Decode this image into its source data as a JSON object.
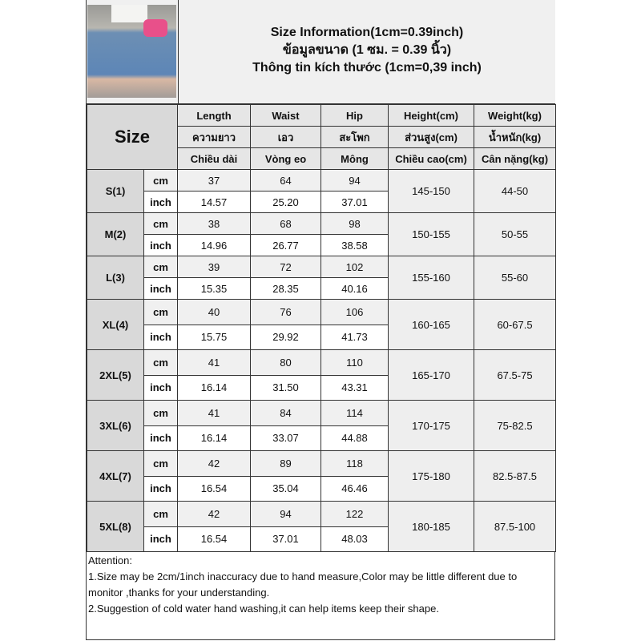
{
  "title": {
    "line1": "Size Information(1cm=0.39inch)",
    "line2": "ข้อมูลขนาด (1 ซม. = 0.39 นิ้ว)",
    "line3": "Thông tin kích thước (1cm=0,39 inch)"
  },
  "header": {
    "size": "Size",
    "en": [
      "Length",
      "Waist",
      "Hip",
      "Height(cm)",
      "Weight(kg)"
    ],
    "th": [
      "ความยาว",
      "เอว",
      "สะโพก",
      "ส่วนสูง(cm)",
      "น้ำหนัก(kg)"
    ],
    "vi": [
      "Chiều dài",
      "Vòng eo",
      "Mông",
      "Chiều cao(cm)",
      "Cân nặng(kg)"
    ]
  },
  "units": {
    "cm": "cm",
    "inch": "inch"
  },
  "rows": [
    {
      "size": "S(1)",
      "cm": [
        "37",
        "64",
        "94"
      ],
      "inch": [
        "14.57",
        "25.20",
        "37.01"
      ],
      "height": "145-150",
      "weight": "44-50"
    },
    {
      "size": "M(2)",
      "cm": [
        "38",
        "68",
        "98"
      ],
      "inch": [
        "14.96",
        "26.77",
        "38.58"
      ],
      "height": "150-155",
      "weight": "50-55"
    },
    {
      "size": "L(3)",
      "cm": [
        "39",
        "72",
        "102"
      ],
      "inch": [
        "15.35",
        "28.35",
        "40.16"
      ],
      "height": "155-160",
      "weight": "55-60"
    },
    {
      "size": "XL(4)",
      "cm": [
        "40",
        "76",
        "106"
      ],
      "inch": [
        "15.75",
        "29.92",
        "41.73"
      ],
      "height": "160-165",
      "weight": "60-67.5"
    },
    {
      "size": "2XL(5)",
      "cm": [
        "41",
        "80",
        "110"
      ],
      "inch": [
        "16.14",
        "31.50",
        "43.31"
      ],
      "height": "165-170",
      "weight": "67.5-75"
    },
    {
      "size": "3XL(6)",
      "cm": [
        "41",
        "84",
        "114"
      ],
      "inch": [
        "16.14",
        "33.07",
        "44.88"
      ],
      "height": "170-175",
      "weight": "75-82.5"
    },
    {
      "size": "4XL(7)",
      "cm": [
        "42",
        "89",
        "118"
      ],
      "inch": [
        "16.54",
        "35.04",
        "46.46"
      ],
      "height": "175-180",
      "weight": "82.5-87.5"
    },
    {
      "size": "5XL(8)",
      "cm": [
        "42",
        "94",
        "122"
      ],
      "inch": [
        "16.54",
        "37.01",
        "48.03"
      ],
      "height": "180-185",
      "weight": "87.5-100"
    }
  ],
  "attention": {
    "heading": "Attention:",
    "line1": "1.Size may be 2cm/1inch inaccuracy due to hand measure,Color may be little different due to monitor ,thanks for your understanding.",
    "line2": "2.Suggestion of cold water hand washing,it can help items keep their shape."
  }
}
